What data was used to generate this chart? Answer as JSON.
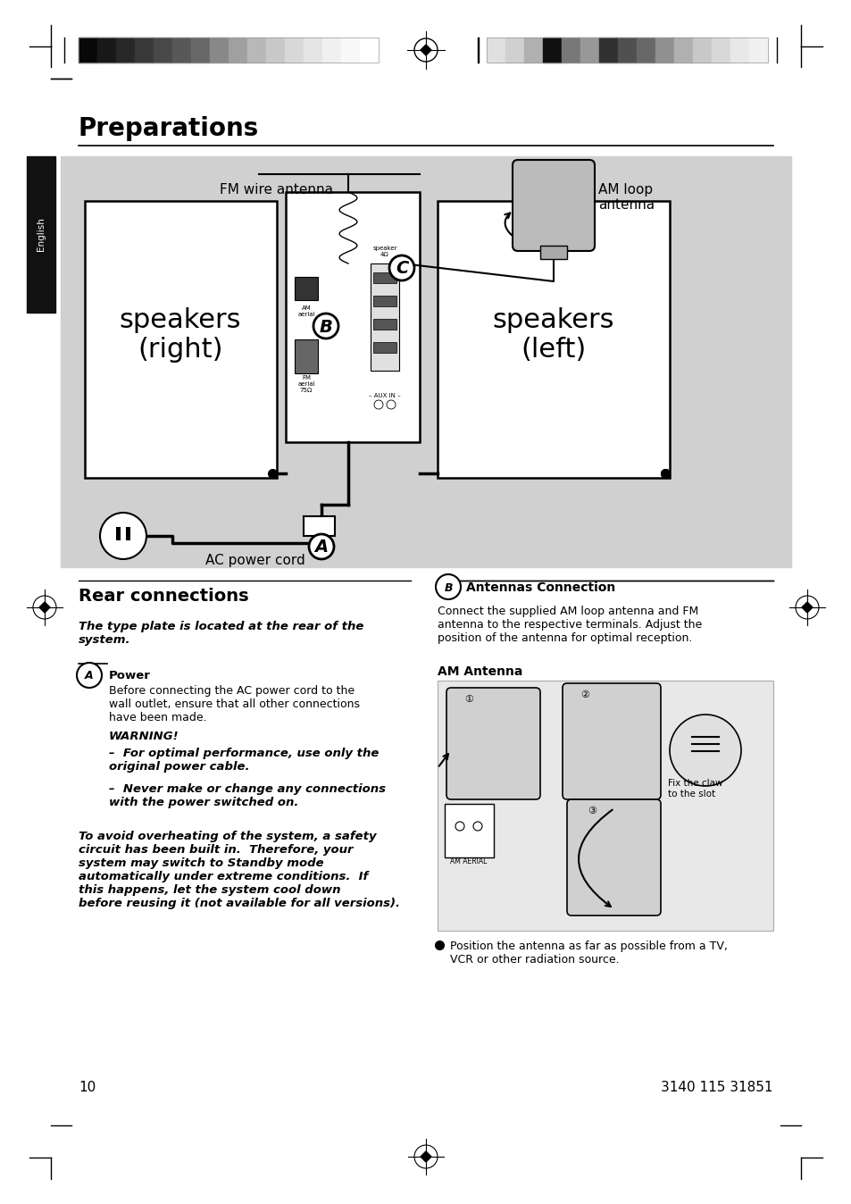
{
  "page_bg": "#ffffff",
  "title": "Preparations",
  "diagram_bg": "#d0d0d0",
  "english_tab_bg": "#111111",
  "english_tab_text": "English",
  "fm_antenna_label": "FM wire antenna",
  "am_antenna_label": "AM loop\nantenna",
  "speakers_right_label": "speakers\n(right)",
  "speakers_left_label": "speakers\n(left)",
  "label_A": "A",
  "label_B": "B",
  "label_C": "C",
  "ac_cord_label": "AC power cord",
  "section_title": "Rear connections",
  "type_plate_italic": "The type plate is located at the rear of the\nsystem.",
  "power_label": "Power",
  "power_text": "Before connecting the AC power cord to the\nwall outlet, ensure that all other connections\nhave been made.",
  "warning_bold": "WARNING!",
  "warning_line1": "–  For optimal performance, use only the\noriginal power cable.",
  "warning_line2": "–  Never make or change any connections\nwith the power switched on.",
  "italic_para": "To avoid overheating of the system, a safety\ncircuit has been built in.  Therefore, your\nsystem may switch to Standby mode\nautomatically under extreme conditions.  If\nthis happens, let the system cool down\nbefore reusing it",
  "italic_para_normal": " (not available for all versions).",
  "antennas_title": "Antennas Connection",
  "antennas_text": "Connect the supplied AM loop antenna and FM\nantenna to the respective terminals. Adjust the\nposition of the antenna for optimal reception.",
  "am_antenna_section": "AM Antenna",
  "bullet_text": "Position the antenna as far as possible from a TV,\nVCR or other radiation source.",
  "page_number": "10",
  "footer_number": "3140 115 31851",
  "fix_claw_label": "Fix the claw\nto the slot",
  "colors_left": [
    "#080808",
    "#181818",
    "#282828",
    "#383838",
    "#484848",
    "#585858",
    "#686868",
    "#888888",
    "#a0a0a0",
    "#b8b8b8",
    "#c8c8c8",
    "#d8d8d8",
    "#e4e4e4",
    "#f0f0f0",
    "#f8f8f8",
    "#ffffff"
  ],
  "colors_right": [
    "#e0e0e0",
    "#d0d0d0",
    "#b0b0b0",
    "#101010",
    "#787878",
    "#989898",
    "#303030",
    "#505050",
    "#686868",
    "#909090",
    "#b0b0b0",
    "#c8c8c8",
    "#d8d8d8",
    "#e8e8e8",
    "#f0f0f0"
  ]
}
